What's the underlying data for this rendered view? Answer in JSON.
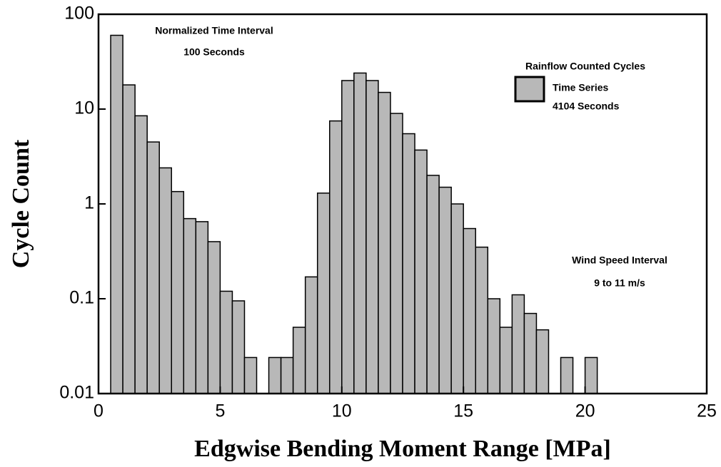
{
  "chart_data": {
    "type": "histogram",
    "x_label": "Edgwise Bending Moment Range [MPa]",
    "y_label": "Cycle Count",
    "annotations": [
      "Normalized Time Interval",
      "100 Seconds",
      "4104 Seconds",
      "Wind Speed Interval",
      "9 to 11 m/s"
    ],
    "legend_title": "Rainflow Counted Cycles",
    "legend": "upper right",
    "log_y": true,
    "bins": [
      0.5,
      1,
      1.5,
      2,
      2.5,
      3,
      3.5,
      4,
      4.5,
      5,
      5.5,
      6,
      6.5,
      7,
      7.5,
      8,
      8.5,
      9,
      9.5,
      10,
      10.5,
      11,
      11.5,
      12,
      12.5,
      13,
      13.5,
      14,
      14.5,
      15,
      15.5,
      16,
      16.5,
      17,
      17.5,
      18,
      18.5,
      19,
      19.5,
      20,
      20.5
    ],
    "series": [
      {
        "name": "Time Series",
        "color": "#b8b8b8",
        "values": [
          60,
          18,
          8.5,
          4.5,
          2.4,
          1.35,
          0.7,
          0.65,
          0.4,
          0.12,
          0.095,
          0.024,
          0,
          0.024,
          0.024,
          0.05,
          0.17,
          1.3,
          7.5,
          20,
          24,
          20,
          15,
          9,
          5.5,
          3.7,
          2,
          1.5,
          1,
          0.55,
          0.35,
          0.1,
          0.05,
          0.11,
          0.07,
          0.047,
          0,
          0.024,
          0,
          0.024
        ]
      }
    ],
    "xlim": [
      0,
      25
    ],
    "xticks": [
      0,
      5,
      10,
      15,
      20,
      25
    ],
    "ylim": [
      0.01,
      100
    ],
    "yticks": [
      0.01,
      0.1,
      1,
      10,
      100
    ]
  }
}
